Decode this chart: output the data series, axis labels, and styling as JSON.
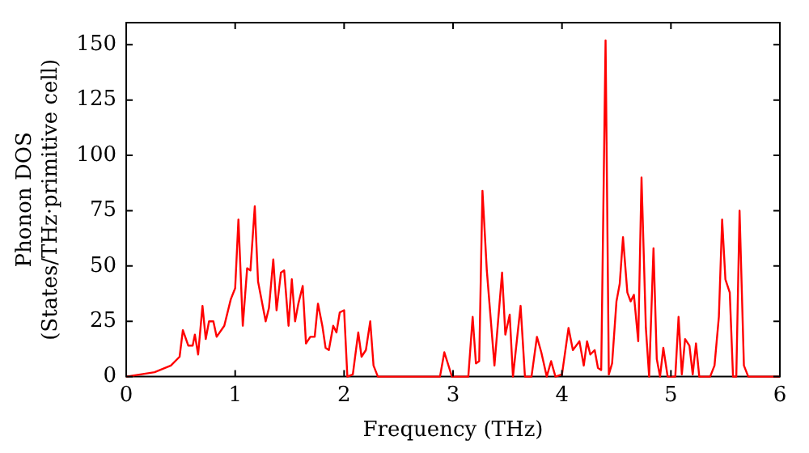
{
  "chart_data": {
    "type": "line",
    "xlabel": "Frequency (THz)",
    "ylabel": "Phonon DOS\n(States/THz·primitive cell)",
    "xlim": [
      0,
      6
    ],
    "ylim": [
      0,
      160
    ],
    "xticks": [
      0,
      1,
      2,
      3,
      4,
      5,
      6
    ],
    "yticks": [
      0,
      25,
      50,
      75,
      100,
      125,
      150
    ],
    "grid": false,
    "legend": false,
    "marker": "none",
    "line_style": "solid",
    "series": [
      {
        "color": "#ff0000",
        "x": [
          0,
          0.26,
          0.41,
          0.49,
          0.52,
          0.57,
          0.61,
          0.63,
          0.66,
          0.7,
          0.73,
          0.76,
          0.8,
          0.83,
          0.9,
          0.96,
          1.0,
          1.03,
          1.07,
          1.11,
          1.14,
          1.18,
          1.21,
          1.28,
          1.31,
          1.35,
          1.38,
          1.42,
          1.45,
          1.49,
          1.52,
          1.55,
          1.58,
          1.62,
          1.65,
          1.69,
          1.73,
          1.76,
          1.8,
          1.83,
          1.86,
          1.9,
          1.93,
          1.96,
          2.0,
          2.03,
          2.08,
          2.13,
          2.16,
          2.2,
          2.24,
          2.27,
          2.31,
          2.88,
          2.92,
          2.99,
          3.14,
          3.18,
          3.21,
          3.24,
          3.27,
          3.31,
          3.38,
          3.45,
          3.48,
          3.52,
          3.55,
          3.62,
          3.66,
          3.72,
          3.77,
          3.81,
          3.86,
          3.9,
          3.94,
          4.0,
          4.06,
          4.1,
          4.16,
          4.2,
          4.23,
          4.26,
          4.3,
          4.33,
          4.36,
          4.4,
          4.43,
          4.46,
          4.5,
          4.53,
          4.56,
          4.6,
          4.63,
          4.66,
          4.7,
          4.73,
          4.77,
          4.8,
          4.84,
          4.87,
          4.9,
          4.93,
          4.97,
          5.04,
          5.07,
          5.1,
          5.13,
          5.17,
          5.2,
          5.23,
          5.26,
          5.36,
          5.4,
          5.44,
          5.47,
          5.5,
          5.54,
          5.57,
          5.6,
          5.63,
          5.67,
          5.71,
          6.0
        ],
        "values": [
          0,
          2,
          5,
          9,
          21,
          14,
          14,
          19,
          10,
          32,
          17,
          25,
          25,
          18,
          23,
          35,
          40,
          71,
          23,
          49,
          48,
          77,
          43,
          25,
          31,
          53,
          30,
          47,
          48,
          23,
          44,
          25,
          33,
          41,
          15,
          18,
          18,
          33,
          23,
          13,
          12,
          23,
          20,
          29,
          30,
          0,
          1,
          20,
          9,
          12,
          25,
          5,
          0,
          0,
          11,
          0,
          0,
          27,
          6,
          7,
          84,
          48,
          5,
          47,
          19,
          28,
          0,
          32,
          0,
          0,
          18,
          11,
          0,
          7,
          0,
          1,
          22,
          12,
          16,
          5,
          16,
          10,
          12,
          4,
          3,
          152,
          1,
          6,
          34,
          42,
          63,
          38,
          34,
          37,
          16,
          90,
          22,
          0,
          58,
          8,
          0,
          13,
          0,
          0,
          27,
          1,
          17,
          14,
          1,
          15,
          0,
          0,
          5,
          27,
          71,
          44,
          38,
          0,
          0,
          75,
          5,
          0,
          0
        ]
      }
    ]
  }
}
